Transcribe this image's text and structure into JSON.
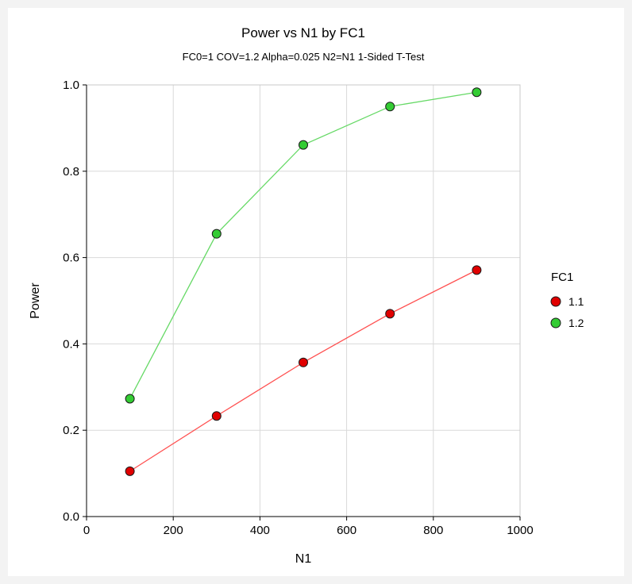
{
  "chart_data": {
    "type": "line",
    "title": "Power vs N1 by FC1",
    "subtitle": "FC0=1 COV=1.2 Alpha=0.025 N2=N1 1-Sided T-Test",
    "xlabel": "N1",
    "ylabel": "Power",
    "xlim": [
      0,
      1000
    ],
    "ylim": [
      0,
      1
    ],
    "xticks": [
      "0",
      "200",
      "400",
      "600",
      "800",
      "1000"
    ],
    "yticks": [
      "0.0",
      "0.2",
      "0.4",
      "0.6",
      "0.8",
      "1.0"
    ],
    "grid": true,
    "legend": {
      "title": "FC1",
      "position": "right"
    },
    "x": [
      100,
      300,
      500,
      700,
      900
    ],
    "series": [
      {
        "name": "1.1",
        "color": "#e00000",
        "line_color": "#ff5050",
        "values": [
          0.105,
          0.233,
          0.357,
          0.47,
          0.571
        ]
      },
      {
        "name": "1.2",
        "color": "#33cc33",
        "line_color": "#66d966",
        "values": [
          0.273,
          0.655,
          0.861,
          0.95,
          0.983
        ]
      }
    ]
  }
}
